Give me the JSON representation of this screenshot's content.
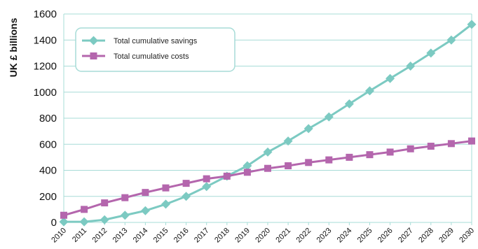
{
  "chart_data": {
    "type": "line",
    "ylabel": "UK £ billions",
    "ylim": [
      0,
      1600
    ],
    "yticks": [
      0,
      200,
      400,
      600,
      800,
      1000,
      1200,
      1400,
      1600
    ],
    "x": [
      "2010",
      "2011",
      "2012",
      "2013",
      "2014",
      "2015",
      "2016",
      "2017",
      "2018",
      "2019",
      "2020",
      "2021",
      "2022",
      "2023",
      "2024",
      "2025",
      "2026",
      "2027",
      "2028",
      "2029",
      "2030"
    ],
    "grid": true,
    "legend_position": "top-left",
    "series": [
      {
        "name": "Total cumulative savings",
        "color": "#7ccac2",
        "marker": "diamond",
        "values": [
          5,
          5,
          20,
          55,
          90,
          140,
          200,
          275,
          355,
          435,
          540,
          625,
          720,
          810,
          910,
          1010,
          1105,
          1200,
          1300,
          1400,
          1520
        ]
      },
      {
        "name": "Total cumulative costs",
        "color": "#b466ad",
        "marker": "square",
        "values": [
          55,
          100,
          150,
          190,
          230,
          265,
          300,
          335,
          355,
          385,
          415,
          435,
          460,
          480,
          500,
          520,
          540,
          565,
          585,
          605,
          625
        ]
      }
    ]
  }
}
